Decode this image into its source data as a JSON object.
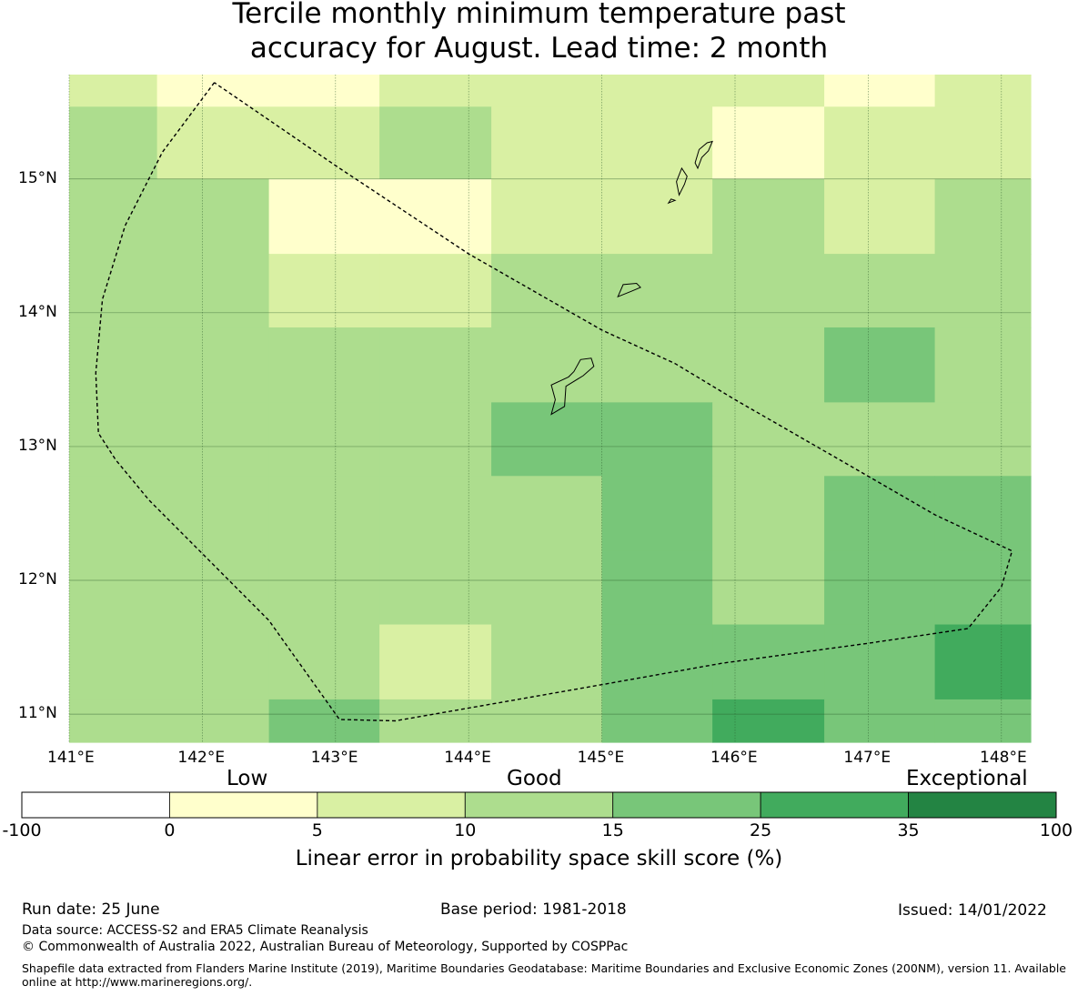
{
  "title": {
    "line1": "Tercile monthly minimum temperature past",
    "line2": "accuracy for August. Lead time: 2 month"
  },
  "map": {
    "lon_range": [
      141.0,
      148.22
    ],
    "lat_range": [
      10.79,
      15.78
    ],
    "lat_ticks": [
      {
        "value": 15,
        "label": "15°N"
      },
      {
        "value": 14,
        "label": "14°N"
      },
      {
        "value": 13,
        "label": "13°N"
      },
      {
        "value": 12,
        "label": "12°N"
      },
      {
        "value": 11,
        "label": "11°N"
      }
    ],
    "lon_ticks": [
      {
        "value": 141,
        "label": "141°E"
      },
      {
        "value": 142,
        "label": "142°E"
      },
      {
        "value": 143,
        "label": "143°E"
      },
      {
        "value": 144,
        "label": "144°E"
      },
      {
        "value": 145,
        "label": "145°E"
      },
      {
        "value": 146,
        "label": "146°E"
      },
      {
        "value": 147,
        "label": "147°E"
      },
      {
        "value": 148,
        "label": "148°E"
      }
    ],
    "grid_lons": [
      141.0,
      141.66,
      142.5,
      143.33,
      144.17,
      145.0,
      145.83,
      146.67,
      147.5,
      148.22
    ],
    "grid_lats": [
      15.78,
      15.54,
      15.0,
      14.44,
      13.89,
      13.33,
      12.78,
      12.22,
      11.67,
      11.11,
      10.79
    ],
    "cells": [
      [
        2,
        1,
        1,
        2,
        2,
        2,
        2,
        1,
        2
      ],
      [
        3,
        2,
        2,
        3,
        2,
        2,
        1,
        2,
        2
      ],
      [
        3,
        3,
        1,
        1,
        2,
        2,
        3,
        2,
        3
      ],
      [
        3,
        3,
        2,
        2,
        3,
        3,
        3,
        3,
        3
      ],
      [
        3,
        3,
        3,
        3,
        3,
        3,
        3,
        4,
        3
      ],
      [
        3,
        3,
        3,
        3,
        4,
        4,
        3,
        3,
        3
      ],
      [
        3,
        3,
        3,
        3,
        3,
        4,
        3,
        4,
        4
      ],
      [
        3,
        3,
        3,
        3,
        3,
        4,
        3,
        4,
        4
      ],
      [
        3,
        3,
        3,
        2,
        3,
        4,
        4,
        4,
        5
      ],
      [
        3,
        3,
        4,
        3,
        3,
        4,
        5,
        4,
        4
      ]
    ],
    "eez_boundary": [
      [
        142.09,
        15.72
      ],
      [
        141.7,
        15.2
      ],
      [
        141.42,
        14.65
      ],
      [
        141.25,
        14.1
      ],
      [
        141.2,
        13.55
      ],
      [
        141.22,
        13.1
      ],
      [
        141.35,
        12.9
      ],
      [
        141.6,
        12.6
      ],
      [
        142.0,
        12.2
      ],
      [
        142.5,
        11.7
      ],
      [
        143.03,
        10.96
      ],
      [
        143.45,
        10.95
      ],
      [
        144.2,
        11.08
      ],
      [
        145.0,
        11.22
      ],
      [
        145.9,
        11.38
      ],
      [
        147.0,
        11.53
      ],
      [
        147.75,
        11.64
      ],
      [
        148.0,
        11.95
      ],
      [
        148.08,
        12.22
      ],
      [
        147.5,
        12.49
      ],
      [
        146.7,
        12.95
      ],
      [
        146.0,
        13.35
      ],
      [
        145.55,
        13.62
      ],
      [
        145.0,
        13.87
      ],
      [
        144.0,
        14.44
      ],
      [
        143.0,
        15.1
      ],
      [
        142.09,
        15.72
      ]
    ],
    "islands": [
      [
        [
          144.62,
          13.24
        ],
        [
          144.72,
          13.3
        ],
        [
          144.73,
          13.45
        ],
        [
          144.86,
          13.53
        ],
        [
          144.94,
          13.6
        ],
        [
          144.92,
          13.66
        ],
        [
          144.84,
          13.65
        ],
        [
          144.79,
          13.56
        ],
        [
          144.75,
          13.52
        ],
        [
          144.62,
          13.46
        ],
        [
          144.65,
          13.35
        ],
        [
          144.62,
          13.24
        ]
      ],
      [
        [
          145.12,
          14.12
        ],
        [
          145.22,
          14.16
        ],
        [
          145.29,
          14.19
        ],
        [
          145.26,
          14.22
        ],
        [
          145.16,
          14.21
        ],
        [
          145.12,
          14.12
        ]
      ],
      [
        [
          145.58,
          14.88
        ],
        [
          145.62,
          14.96
        ],
        [
          145.64,
          15.02
        ],
        [
          145.6,
          15.08
        ],
        [
          145.56,
          14.98
        ],
        [
          145.58,
          14.88
        ]
      ],
      [
        [
          145.72,
          15.08
        ],
        [
          145.75,
          15.16
        ],
        [
          145.8,
          15.21
        ],
        [
          145.83,
          15.28
        ],
        [
          145.79,
          15.27
        ],
        [
          145.73,
          15.22
        ],
        [
          145.7,
          15.12
        ],
        [
          145.72,
          15.08
        ]
      ],
      [
        [
          145.5,
          14.82
        ],
        [
          145.55,
          14.84
        ],
        [
          145.52,
          14.85
        ],
        [
          145.5,
          14.82
        ]
      ]
    ]
  },
  "colorbar": {
    "categories": {
      "low": "Low",
      "good": "Good",
      "exceptional": "Exceptional"
    },
    "colors": [
      "#ffffff",
      "#ffffcc",
      "#d9f0a3",
      "#addd8e",
      "#78c679",
      "#41ab5d",
      "#238443"
    ],
    "ticks": [
      "-100",
      "0",
      "5",
      "10",
      "15",
      "25",
      "35",
      "100"
    ],
    "label": "Linear error in probability space skill score (%)"
  },
  "footer": {
    "run_date": "Run date: 25 June",
    "base_period": "Base period: 1981-2018",
    "issued": "Issued: 14/01/2022",
    "data_source": "Data source: ACCESS-S2 and ERA5 Climate Reanalysis",
    "copyright": "© Commonwealth of Australia 2022, Australian Bureau of Meteorology, Supported by COSPPac",
    "shapefile": "Shapefile data extracted from Flanders Marine Institute (2019), Maritime Boundaries Geodatabase: Maritime Boundaries and Exclusive Economic Zones (200NM), version 11. Available online at http://www.marineregions.org/."
  }
}
